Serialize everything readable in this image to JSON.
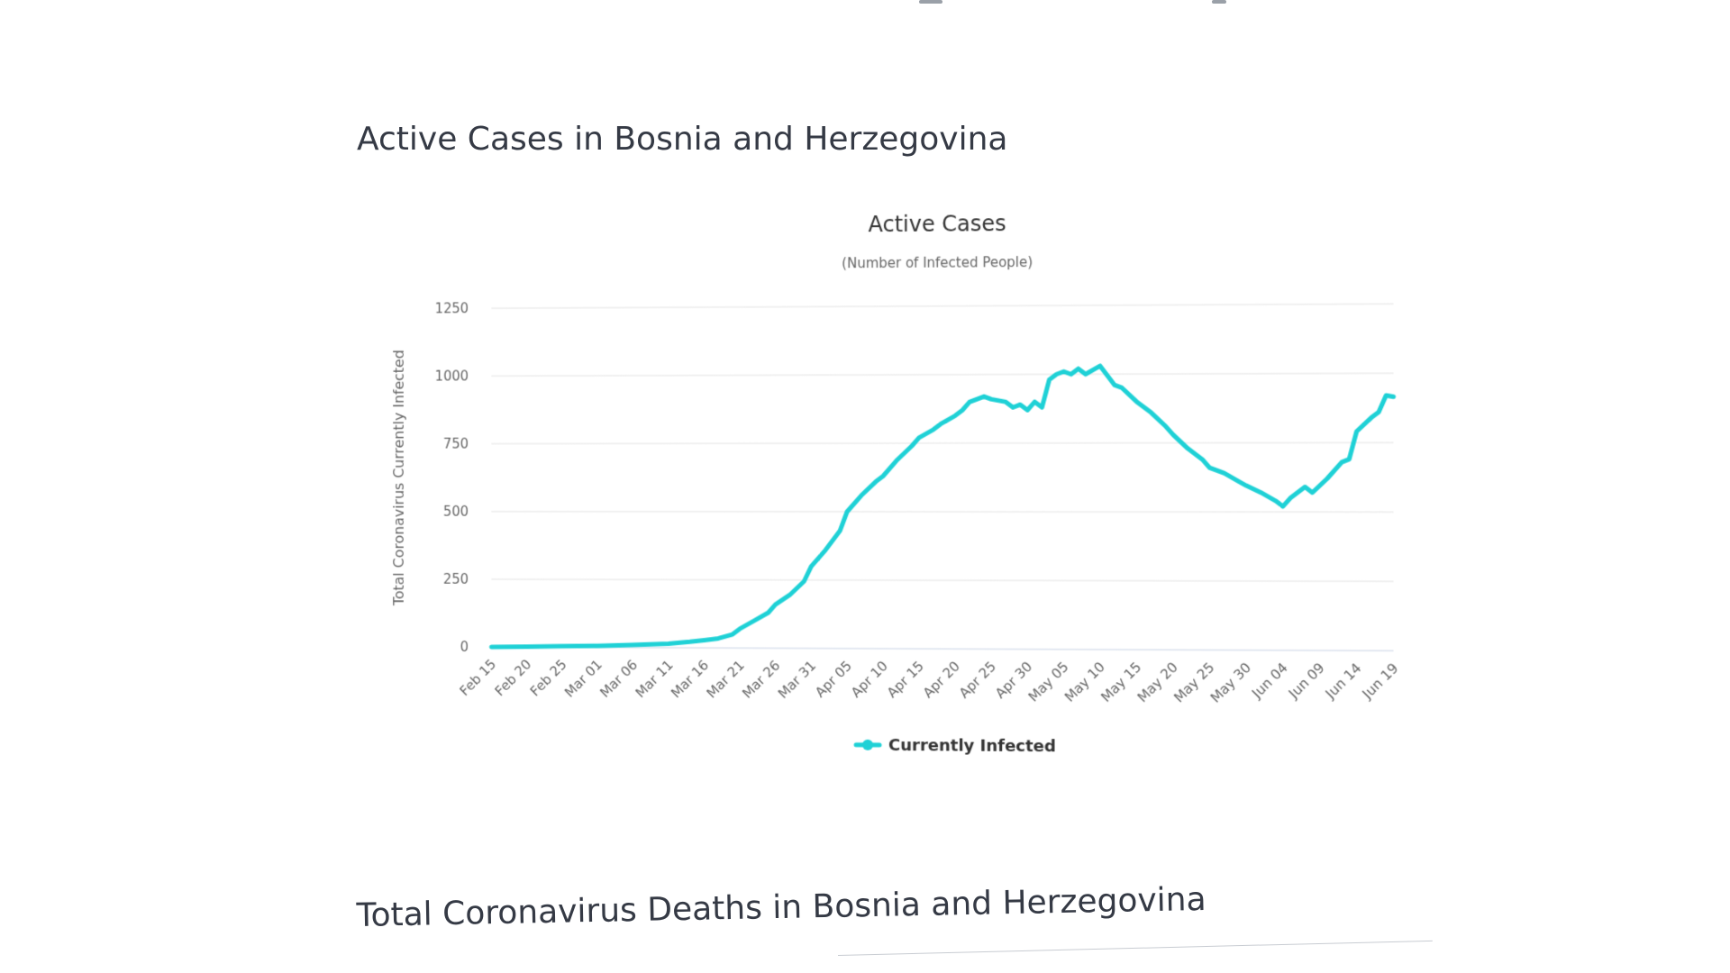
{
  "headings": {
    "active": "Active Cases in Bosnia and Herzegovina",
    "deaths": "Total Coronavirus Deaths in Bosnia and Herzegovina"
  },
  "colors": {
    "series": "#1fd1d6",
    "grid": "#e4e4e4",
    "text": "#333333",
    "axis_text": "#666666"
  },
  "chart_data": {
    "type": "line",
    "title": "Active Cases",
    "subtitle": "(Number of Infected People)",
    "ylabel": "Total Coronavirus Currently Infected",
    "xlabel": "",
    "ylim": [
      0,
      1250
    ],
    "yticks": [
      0,
      250,
      500,
      750,
      1000,
      1250
    ],
    "grid": true,
    "legend": "bottom-center",
    "x_tick_labels": [
      "Feb 15",
      "Feb 20",
      "Feb 25",
      "Mar 01",
      "Mar 06",
      "Mar 11",
      "Mar 16",
      "Mar 21",
      "Mar 26",
      "Mar 31",
      "Apr 05",
      "Apr 10",
      "Apr 15",
      "Apr 20",
      "Apr 25",
      "Apr 30",
      "May 05",
      "May 10",
      "May 15",
      "May 20",
      "May 25",
      "May 30",
      "Jun 04",
      "Jun 09",
      "Jun 14",
      "Jun 19"
    ],
    "x": [
      "Feb 15",
      "Feb 20",
      "Feb 25",
      "Mar 01",
      "Mar 06",
      "Mar 11",
      "Mar 14",
      "Mar 16",
      "Mar 18",
      "Mar 20",
      "Mar 21",
      "Mar 23",
      "Mar 25",
      "Mar 26",
      "Mar 28",
      "Mar 30",
      "Mar 31",
      "Apr 02",
      "Apr 04",
      "Apr 05",
      "Apr 07",
      "Apr 09",
      "Apr 10",
      "Apr 12",
      "Apr 14",
      "Apr 15",
      "Apr 17",
      "Apr 18",
      "Apr 20",
      "Apr 21",
      "Apr 22",
      "Apr 24",
      "Apr 25",
      "Apr 27",
      "Apr 28",
      "Apr 29",
      "Apr 30",
      "May 01",
      "May 02",
      "May 03",
      "May 04",
      "May 05",
      "May 06",
      "May 07",
      "May 08",
      "May 10",
      "May 12",
      "May 13",
      "May 15",
      "May 17",
      "May 19",
      "May 20",
      "May 22",
      "May 24",
      "May 25",
      "May 27",
      "May 29",
      "May 30",
      "Jun 01",
      "Jun 03",
      "Jun 04",
      "Jun 05",
      "Jun 07",
      "Jun 08",
      "Jun 10",
      "Jun 12",
      "Jun 13",
      "Jun 14",
      "Jun 16",
      "Jun 17",
      "Jun 18",
      "Jun 19"
    ],
    "series": [
      {
        "name": "Currently Infected",
        "values": [
          0,
          2,
          4,
          6,
          10,
          15,
          22,
          28,
          35,
          50,
          70,
          100,
          130,
          160,
          195,
          245,
          300,
          360,
          430,
          500,
          560,
          610,
          630,
          690,
          740,
          770,
          800,
          820,
          850,
          870,
          900,
          920,
          910,
          900,
          880,
          890,
          870,
          900,
          880,
          980,
          1000,
          1010,
          1000,
          1020,
          1000,
          1030,
          960,
          950,
          900,
          860,
          810,
          780,
          730,
          690,
          660,
          640,
          610,
          595,
          570,
          540,
          520,
          550,
          590,
          570,
          620,
          680,
          690,
          790,
          840,
          860,
          920,
          915
        ]
      }
    ]
  }
}
